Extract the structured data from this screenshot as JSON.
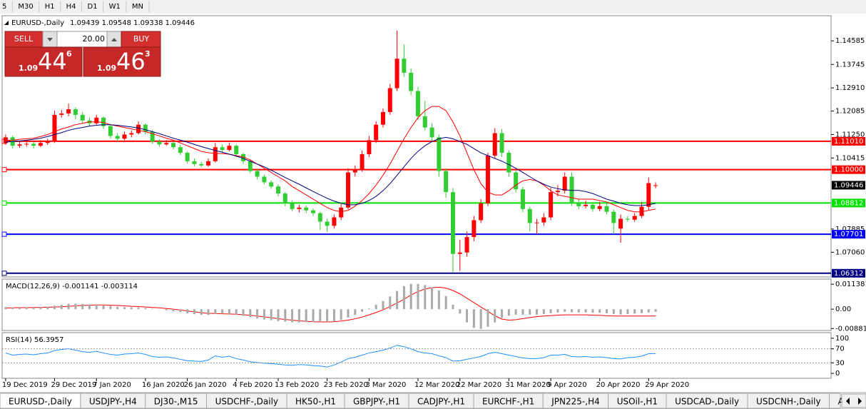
{
  "toolbar": {
    "timeframes": [
      "5",
      "M30",
      "H1",
      "H4",
      "D1",
      "W1",
      "MN"
    ]
  },
  "trade_panel": {
    "sell_label": "SELL",
    "lot": "20.00",
    "buy_label": "BUY",
    "sell_price": {
      "prefix": "1.09",
      "big": "44",
      "sup": "6"
    },
    "buy_price": {
      "prefix": "1.09",
      "big": "46",
      "sup": "3"
    }
  },
  "chart_data": {
    "type": "candlestick",
    "title": "EURUSD-,Daily",
    "header_values": "1.09439 1.09548 1.09338 1.09446",
    "up_color": "#ff0000",
    "down_color": "#32cd32",
    "xlim": [
      -0.5,
      118.1
    ],
    "ylim": [
      1.0618,
      1.1548
    ],
    "yticks": [
      1.14585,
      1.13745,
      {
        "value": 1.1291,
        "label": "1.12910"
      },
      1.12085,
      {
        "value": 1.1125,
        "label": "1.11250"
      },
      1.10415,
      1.07885,
      {
        "value": 1.0706,
        "label": "1.07060"
      }
    ],
    "xticks": [
      {
        "value": 0,
        "label": "19 Dec 2019"
      },
      {
        "value": 7,
        "label": "29 Dec 2019"
      },
      {
        "value": 13,
        "label": "7 Jan 2020"
      },
      {
        "value": 20,
        "label": "16 Jan 2020"
      },
      {
        "value": 26,
        "label": "26 Jan 2020"
      },
      {
        "value": 33,
        "label": "4 Feb 2020"
      },
      {
        "value": 39,
        "label": "13 Feb 2020"
      },
      {
        "value": 46,
        "label": "23 Feb 2020"
      },
      {
        "value": 52,
        "label": "3 Mar 2020"
      },
      {
        "value": 59,
        "label": "12 Mar 2020"
      },
      {
        "value": 65,
        "label": "22 Mar 2020"
      },
      {
        "value": 72,
        "label": "31 Mar 2020"
      },
      {
        "value": 78,
        "label": "9 Apr 2020"
      },
      {
        "value": 85,
        "label": "20 Apr 2020"
      },
      {
        "value": 92,
        "label": "29 Apr 2020"
      }
    ],
    "levels": [
      {
        "value": 1.1101,
        "label": "1.11010",
        "color": "#ff0000"
      },
      {
        "value": 1.1,
        "label": "1.10000",
        "color": "#ff0000"
      },
      {
        "value": 1.08812,
        "color": "#00e000"
      },
      {
        "value": 1.07701,
        "color": "#0000ff"
      },
      {
        "value": 1.06312,
        "color": "#000080"
      }
    ],
    "last_price": 1.09446,
    "ohlc": [
      [
        1.1095,
        1.1125,
        1.1088,
        1.1115
      ],
      [
        1.1115,
        1.112,
        1.1075,
        1.1085
      ],
      [
        1.1085,
        1.11,
        1.1078,
        1.109
      ],
      [
        1.109,
        1.1102,
        1.1082,
        1.1092
      ],
      [
        1.1092,
        1.1098,
        1.1075,
        1.1085
      ],
      [
        1.1085,
        1.1105,
        1.108,
        1.1095
      ],
      [
        1.1095,
        1.111,
        1.1088,
        1.11
      ],
      [
        1.11,
        1.121,
        1.1095,
        1.1195
      ],
      [
        1.1195,
        1.1212,
        1.1185,
        1.12
      ],
      [
        1.12,
        1.1235,
        1.119,
        1.1215
      ],
      [
        1.1215,
        1.1222,
        1.118,
        1.1195
      ],
      [
        1.1195,
        1.1205,
        1.1165,
        1.1175
      ],
      [
        1.1175,
        1.1185,
        1.1155,
        1.1165
      ],
      [
        1.1165,
        1.1195,
        1.116,
        1.1185
      ],
      [
        1.1185,
        1.119,
        1.1145,
        1.1155
      ],
      [
        1.1155,
        1.1162,
        1.111,
        1.112
      ],
      [
        1.112,
        1.113,
        1.11,
        1.111
      ],
      [
        1.111,
        1.1135,
        1.1105,
        1.1125
      ],
      [
        1.1125,
        1.114,
        1.1115,
        1.113
      ],
      [
        1.113,
        1.1172,
        1.1125,
        1.116
      ],
      [
        1.116,
        1.1165,
        1.1125,
        1.1135
      ],
      [
        1.1135,
        1.1142,
        1.1092,
        1.11
      ],
      [
        1.11,
        1.1108,
        1.1082,
        1.109
      ],
      [
        1.109,
        1.1105,
        1.1085,
        1.1095
      ],
      [
        1.1095,
        1.11,
        1.1072,
        1.108
      ],
      [
        1.108,
        1.1088,
        1.1052,
        1.106
      ],
      [
        1.106,
        1.1065,
        1.1022,
        1.103
      ],
      [
        1.103,
        1.104,
        1.1012,
        1.102
      ],
      [
        1.102,
        1.1028,
        1.1008,
        1.1015
      ],
      [
        1.1015,
        1.104,
        1.101,
        1.103
      ],
      [
        1.103,
        1.1095,
        1.1025,
        1.108
      ],
      [
        1.108,
        1.109,
        1.106,
        1.107
      ],
      [
        1.107,
        1.1095,
        1.1065,
        1.1085
      ],
      [
        1.1085,
        1.109,
        1.1045,
        1.1055
      ],
      [
        1.1055,
        1.106,
        1.102,
        1.103
      ],
      [
        1.103,
        1.1035,
        1.0988,
        1.0995
      ],
      [
        1.0995,
        1.1,
        1.0965,
        1.0975
      ],
      [
        1.0975,
        1.0982,
        1.0948,
        1.0955
      ],
      [
        1.0955,
        1.0962,
        1.0932,
        1.094
      ],
      [
        1.094,
        1.0948,
        1.0905,
        1.0915
      ],
      [
        1.0915,
        1.092,
        1.087,
        1.088
      ],
      [
        1.088,
        1.089,
        1.0852,
        1.086
      ],
      [
        1.086,
        1.0875,
        1.0848,
        1.0865
      ],
      [
        1.0865,
        1.0872,
        1.0845,
        1.0855
      ],
      [
        1.0855,
        1.0862,
        1.0835,
        1.0845
      ],
      [
        1.0845,
        1.085,
        1.0785,
        1.0815
      ],
      [
        1.0815,
        1.0825,
        1.0778,
        1.08
      ],
      [
        1.08,
        1.084,
        1.079,
        1.083
      ],
      [
        1.083,
        1.0878,
        1.082,
        1.0865
      ],
      [
        1.0865,
        1.1005,
        1.0858,
        1.099
      ],
      [
        1.099,
        1.1015,
        1.0975,
        1.1
      ],
      [
        1.1,
        1.1068,
        1.0992,
        1.1055
      ],
      [
        1.1055,
        1.112,
        1.1045,
        1.1105
      ],
      [
        1.1105,
        1.1172,
        1.1095,
        1.116
      ],
      [
        1.116,
        1.1218,
        1.115,
        1.1205
      ],
      [
        1.1205,
        1.1305,
        1.1195,
        1.129
      ],
      [
        1.129,
        1.1495,
        1.128,
        1.1395
      ],
      [
        1.1395,
        1.1445,
        1.133,
        1.1345
      ],
      [
        1.1345,
        1.136,
        1.1265,
        1.128
      ],
      [
        1.128,
        1.1295,
        1.1175,
        1.119
      ],
      [
        1.119,
        1.1245,
        1.114,
        1.115
      ],
      [
        1.115,
        1.1165,
        1.11,
        1.1115
      ],
      [
        1.1115,
        1.1125,
        1.0975,
        1.0995
      ],
      [
        1.0995,
        1.1005,
        1.09,
        1.092
      ],
      [
        1.092,
        1.0935,
        1.0636,
        1.07
      ],
      [
        1.07,
        1.075,
        1.064,
        1.0705
      ],
      [
        1.0705,
        1.078,
        1.069,
        1.076
      ],
      [
        1.076,
        1.0835,
        1.0745,
        1.082
      ],
      [
        1.082,
        1.0895,
        1.081,
        1.088
      ],
      [
        1.088,
        1.106,
        1.087,
        1.105
      ],
      [
        1.105,
        1.1148,
        1.104,
        1.113
      ],
      [
        1.113,
        1.1145,
        1.1045,
        1.106
      ],
      [
        1.106,
        1.1068,
        1.0975,
        1.099
      ],
      [
        1.099,
        1.0998,
        1.0918,
        1.093
      ],
      [
        1.093,
        1.0938,
        1.0848,
        1.086
      ],
      [
        1.086,
        1.0868,
        1.078,
        1.081
      ],
      [
        1.081,
        1.0825,
        1.077,
        1.0812
      ],
      [
        1.0812,
        1.0845,
        1.08,
        1.083
      ],
      [
        1.083,
        1.0935,
        1.082,
        1.092
      ],
      [
        1.092,
        1.0945,
        1.0905,
        1.0925
      ],
      [
        1.0925,
        1.099,
        1.0915,
        1.0975
      ],
      [
        1.0975,
        1.099,
        1.087,
        1.088
      ],
      [
        1.088,
        1.0895,
        1.086,
        1.087
      ],
      [
        1.087,
        1.089,
        1.0862,
        1.0875
      ],
      [
        1.0875,
        1.0882,
        1.085,
        1.086
      ],
      [
        1.086,
        1.0885,
        1.0852,
        1.087
      ],
      [
        1.087,
        1.0878,
        1.084,
        1.085
      ],
      [
        1.085,
        1.0858,
        1.077,
        1.081
      ],
      [
        1.079,
        1.084,
        1.074,
        1.0825
      ],
      [
        1.0825,
        1.0835,
        1.0815,
        1.0822
      ],
      [
        1.0822,
        1.0845,
        1.0815,
        1.0835
      ],
      [
        1.0835,
        1.0885,
        1.0828,
        1.0868
      ],
      [
        1.0868,
        1.0972,
        1.0855,
        1.0952
      ],
      [
        1.09439,
        1.09548,
        1.09338,
        1.09446
      ]
    ],
    "lines": [
      {
        "color": "#ff0000",
        "values": [
          1.1105,
          1.1105,
          1.1108,
          1.111,
          1.1112,
          1.1118,
          1.1125,
          1.1135,
          1.1145,
          1.1152,
          1.116,
          1.1165,
          1.117,
          1.117,
          1.1168,
          1.116,
          1.1155,
          1.115,
          1.1145,
          1.114,
          1.1135,
          1.1128,
          1.112,
          1.1112,
          1.1105,
          1.1095,
          1.1085,
          1.1075,
          1.1065,
          1.106,
          1.1058,
          1.1057,
          1.1055,
          1.105,
          1.1045,
          1.1035,
          1.102,
          1.1005,
          1.099,
          1.0975,
          1.096,
          1.094,
          1.0925,
          1.091,
          1.0895,
          1.088,
          1.0865,
          1.0855,
          1.085,
          1.0855,
          1.087,
          1.089,
          1.0915,
          1.0945,
          1.098,
          1.102,
          1.1065,
          1.111,
          1.115,
          1.1185,
          1.121,
          1.1225,
          1.1225,
          1.121,
          1.117,
          1.112,
          1.106,
          1.1,
          1.095,
          1.092,
          1.091,
          1.091,
          1.0925,
          1.0945,
          1.096,
          1.0965,
          1.096,
          1.0945,
          1.0925,
          1.091,
          1.0905,
          1.09,
          1.0895,
          1.0895,
          1.0895,
          1.089,
          1.0885,
          1.0875,
          1.0865,
          1.0855,
          1.085,
          1.085,
          1.0855,
          1.086
        ]
      },
      {
        "color": "#000080",
        "values": [
          1.1098,
          1.11,
          1.1102,
          1.1105,
          1.1108,
          1.1112,
          1.1118,
          1.1125,
          1.1132,
          1.114,
          1.1146,
          1.115,
          1.1155,
          1.1158,
          1.116,
          1.116,
          1.1158,
          1.1155,
          1.1152,
          1.1148,
          1.1142,
          1.1135,
          1.1128,
          1.112,
          1.1112,
          1.1105,
          1.1098,
          1.109,
          1.1082,
          1.1075,
          1.1068,
          1.1062,
          1.1055,
          1.1048,
          1.104,
          1.103,
          1.102,
          1.101,
          1.0998,
          1.0985,
          1.0972,
          1.096,
          1.0948,
          1.0935,
          1.0922,
          1.091,
          1.0898,
          1.0888,
          1.088,
          1.0875,
          1.0875,
          1.088,
          1.089,
          1.0905,
          1.0925,
          1.095,
          1.098,
          1.101,
          1.104,
          1.1065,
          1.1085,
          1.11,
          1.111,
          1.1115,
          1.111,
          1.11,
          1.109,
          1.1075,
          1.106,
          1.105,
          1.104,
          1.103,
          1.1018,
          1.1005,
          1.099,
          1.0975,
          1.096,
          1.0948,
          1.0938,
          1.0932,
          1.0928,
          1.0926,
          1.0926,
          1.0922,
          1.0915,
          1.0905,
          1.0895,
          1.0888,
          1.088,
          1.0875,
          1.0872,
          1.0872,
          1.0875,
          1.088
        ]
      }
    ],
    "macd": {
      "title": "MACD(12,26,9) -0.001141 -0.003114",
      "ylim": [
        -0.0097,
        0.0137
      ],
      "yticks": [
        0.011381,
        {
          "value": 0,
          "label": "0.00"
        },
        -0.00881
      ],
      "histogram_color": "#a9a9a9",
      "signal_color": "#ff0000",
      "histogram": [
        0.001,
        0.0008,
        0.0007,
        0.0008,
        0.0008,
        0.001,
        0.0012,
        0.0016,
        0.002,
        0.0024,
        0.0025,
        0.0024,
        0.0022,
        0.0022,
        0.0019,
        0.0015,
        0.0011,
        0.0009,
        0.0008,
        0.0008,
        0.0005,
        0.0002,
        -0.0001,
        -0.0005,
        -0.0009,
        -0.0014,
        -0.0019,
        -0.0023,
        -0.0026,
        -0.0026,
        -0.0022,
        -0.0021,
        -0.0022,
        -0.0026,
        -0.0031,
        -0.0037,
        -0.0042,
        -0.0047,
        -0.005,
        -0.0054,
        -0.0057,
        -0.006,
        -0.006,
        -0.0059,
        -0.0058,
        -0.0058,
        -0.0058,
        -0.0055,
        -0.0049,
        -0.0038,
        -0.0026,
        -0.0012,
        0.0003,
        0.002,
        0.0037,
        0.0058,
        0.0083,
        0.0105,
        0.0115,
        0.0115,
        0.011,
        0.01,
        0.0085,
        0.006,
        0.002,
        -0.002,
        -0.006,
        -0.0085,
        -0.009,
        -0.008,
        -0.006,
        -0.004,
        -0.003,
        -0.0025,
        -0.0025,
        -0.0025,
        -0.0025,
        -0.0022,
        -0.0018,
        -0.0015,
        -0.0012,
        -0.0014,
        -0.0015,
        -0.0015,
        -0.0016,
        -0.0016,
        -0.0018,
        -0.0022,
        -0.0024,
        -0.0022,
        -0.002,
        -0.0018,
        -0.0015,
        -0.001141
      ],
      "signal": [
        0.0005,
        0.0006,
        0.0007,
        0.0007,
        0.0008,
        0.0008,
        0.0009,
        0.001,
        0.0011,
        0.0013,
        0.0015,
        0.0017,
        0.0018,
        0.0019,
        0.0019,
        0.0018,
        0.0017,
        0.0015,
        0.0013,
        0.0012,
        0.001,
        0.0008,
        0.0006,
        0.0003,
        0,
        -0.0004,
        -0.0008,
        -0.0012,
        -0.0016,
        -0.0019,
        -0.002,
        -0.0021,
        -0.0022,
        -0.0023,
        -0.0025,
        -0.0028,
        -0.0031,
        -0.0035,
        -0.0039,
        -0.0043,
        -0.0047,
        -0.005,
        -0.0053,
        -0.0055,
        -0.0057,
        -0.0058,
        -0.0058,
        -0.0057,
        -0.0054,
        -0.005,
        -0.0044,
        -0.0036,
        -0.0026,
        -0.0015,
        -0.0003,
        0.0012,
        0.0028,
        0.0045,
        0.0065,
        0.008,
        0.0092,
        0.0098,
        0.01,
        0.0096,
        0.0085,
        0.007,
        0.005,
        0.003,
        0.001,
        -0.001,
        -0.003,
        -0.0045,
        -0.005,
        -0.0048,
        -0.0043,
        -0.0038,
        -0.0034,
        -0.0031,
        -0.0029,
        -0.0027,
        -0.0026,
        -0.0026,
        -0.0026,
        -0.0026,
        -0.0027,
        -0.0028,
        -0.003,
        -0.0031,
        -0.0031,
        -0.0031,
        -0.0031,
        -0.0031,
        -0.0031,
        -0.003114
      ]
    },
    "rsi": {
      "title": "RSI(14) 56.3957",
      "ylim": [
        -14,
        116
      ],
      "yticks": [
        100,
        70,
        30,
        0
      ],
      "levels": [
        70,
        30
      ],
      "color": "#1e90ff",
      "values": [
        58,
        52,
        54,
        55,
        53,
        56,
        58,
        65,
        68,
        70,
        66,
        62,
        60,
        63,
        58,
        54,
        52,
        55,
        56,
        58,
        54,
        48,
        46,
        47,
        44,
        40,
        36,
        35,
        34,
        38,
        50,
        46,
        49,
        42,
        38,
        33,
        31,
        29,
        28,
        26,
        24,
        23,
        25,
        24,
        22,
        21,
        18,
        24,
        32,
        42,
        46,
        52,
        58,
        62,
        66,
        72,
        80,
        76,
        70,
        62,
        58,
        56,
        50,
        45,
        35,
        36,
        40,
        44,
        48,
        56,
        60,
        56,
        52,
        48,
        44,
        42,
        42,
        45,
        52,
        52,
        54,
        48,
        47,
        48,
        46,
        47,
        45,
        42,
        41,
        45,
        46,
        49,
        56,
        56.3957
      ]
    }
  },
  "tabs": [
    "EURUSD-,Daily",
    "USDJPY-,H4",
    "DJ30-,M15",
    "USDCHF-,Daily",
    "HK50-,H1",
    "GBPJPY-,H1",
    "CADJPY-,H1",
    "EURCHF-,H1",
    "JPN225-,H4",
    "USOil-,H1",
    "USDCAD-,Daily",
    "USDCNH-,Daily",
    "AUDU"
  ]
}
